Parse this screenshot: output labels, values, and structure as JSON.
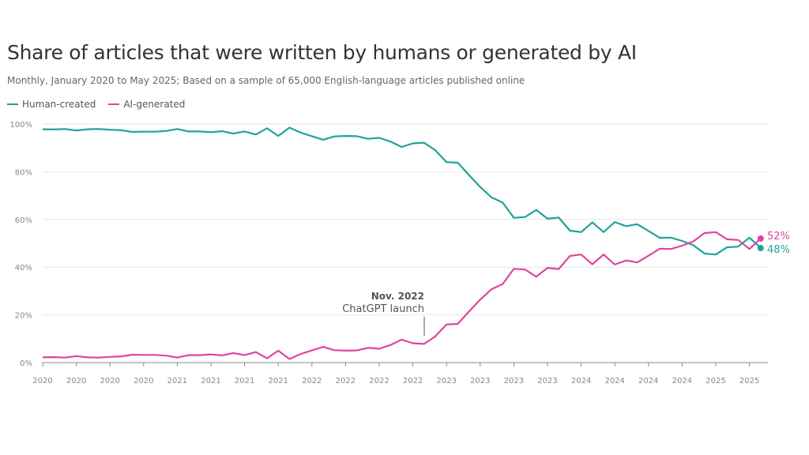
{
  "colors": {
    "human": "#1fa39a",
    "ai": "#e0449f",
    "grid": "#e6e6e6",
    "axis": "#888888"
  },
  "chart_data": {
    "type": "line",
    "title": "Share of articles that were written by humans or generated by AI",
    "subtitle": "Monthly, January 2020 to May 2025; Based on a sample of 65,000 English-language articles published online",
    "ylim": [
      0,
      100
    ],
    "y_ticks": [
      "0%",
      "20%",
      "40%",
      "60%",
      "80%",
      "100%"
    ],
    "y_tick_values": [
      0,
      20,
      40,
      60,
      80,
      100
    ],
    "x_tick_labels": [
      "2020",
      "2020",
      "2020",
      "2020",
      "2021",
      "2021",
      "2021",
      "2021",
      "2022",
      "2022",
      "2022",
      "2022",
      "2023",
      "2023",
      "2023",
      "2023",
      "2024",
      "2024",
      "2024",
      "2024",
      "2025",
      "2025"
    ],
    "legend_position": "top-left",
    "grid": true,
    "series": [
      {
        "name": "Human-created",
        "values": [
          97.8,
          97.7,
          97.9,
          97.3,
          97.8,
          97.9,
          97.6,
          97.4,
          96.7,
          96.8,
          96.8,
          97.1,
          97.9,
          96.9,
          96.9,
          96.6,
          97.0,
          96.0,
          96.9,
          95.6,
          98.2,
          95.0,
          98.5,
          96.4,
          94.9,
          93.4,
          94.8,
          95.0,
          94.9,
          93.8,
          94.2,
          92.6,
          90.4,
          91.9,
          92.2,
          89.0,
          84.0,
          83.8,
          78.6,
          73.6,
          69.3,
          67.1,
          60.7,
          61.0,
          64.0,
          60.3,
          60.8,
          55.3,
          54.7,
          58.8,
          54.7,
          58.9,
          57.2,
          58.0,
          55.2,
          52.3,
          52.4,
          51.0,
          49.2,
          45.7,
          45.3,
          48.3,
          48.6,
          52.4,
          48.0
        ]
      },
      {
        "name": "AI-generated",
        "values": [
          2.2,
          2.3,
          2.1,
          2.7,
          2.2,
          2.1,
          2.4,
          2.6,
          3.3,
          3.2,
          3.2,
          2.9,
          2.1,
          3.1,
          3.1,
          3.4,
          3.0,
          4.0,
          3.1,
          4.4,
          1.8,
          5.0,
          1.5,
          3.6,
          5.1,
          6.6,
          5.2,
          5.0,
          5.1,
          6.2,
          5.8,
          7.4,
          9.6,
          8.1,
          7.8,
          11.0,
          16.0,
          16.2,
          21.4,
          26.4,
          30.7,
          32.9,
          39.3,
          39.0,
          36.0,
          39.7,
          39.2,
          44.7,
          45.3,
          41.2,
          45.3,
          41.1,
          42.8,
          42.0,
          44.8,
          47.7,
          47.6,
          49.0,
          50.8,
          54.3,
          54.7,
          51.7,
          51.4,
          47.6,
          52.0
        ]
      }
    ],
    "end_labels": {
      "ai": "52%",
      "human": "48%"
    },
    "annotations": [
      {
        "title": "Nov. 2022",
        "text": "ChatGPT launch"
      }
    ]
  }
}
